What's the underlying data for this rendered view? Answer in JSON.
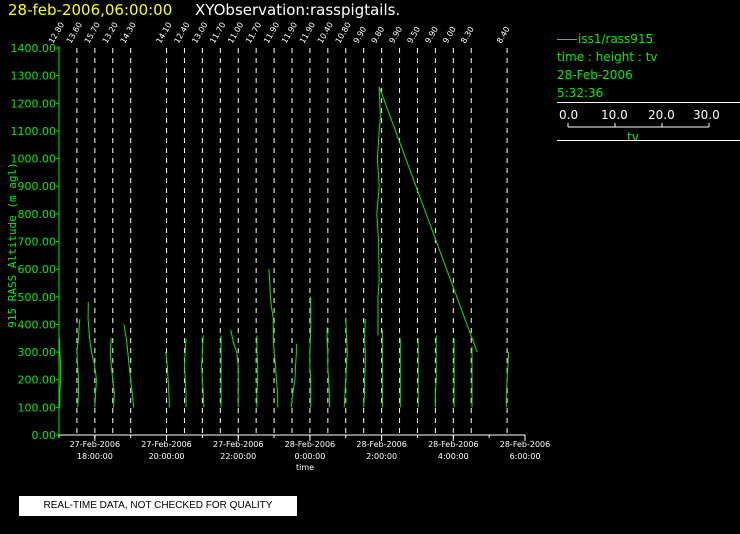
{
  "header": {
    "date_time": "28-feb-2006,06:00:00",
    "title": "XYObservation:rasspigtails."
  },
  "legend": {
    "series_label": "iss1/rass915",
    "description": "time : height : tv",
    "date": "28-Feb-2006",
    "time": "5:32:36",
    "scale_ticks": [
      "0.0",
      "10.0",
      "20.0",
      "30.0"
    ],
    "scale_label": "tv"
  },
  "notice": "REAL-TIME DATA, NOT CHECKED FOR QUALITY",
  "colors": {
    "background": "#000000",
    "data": "#00ee00",
    "title_date": "#ffff00",
    "text": "#ffffff"
  },
  "chart_data": {
    "type": "line",
    "xlabel": "time",
    "ylabel": "915 RASS Altitude (m agl)",
    "ylim": [
      0,
      1400
    ],
    "xlim": [
      "2006-02-27 17:00",
      "2006-02-28 06:00"
    ],
    "y_ticks": [
      "0.00",
      "100.00",
      "200.00",
      "300.00",
      "400.00",
      "500.00",
      "600.00",
      "700.00",
      "800.00",
      "900.00",
      "1000.00",
      "1100.00",
      "1200.00",
      "1300.00",
      "1400.00"
    ],
    "x_ticks": [
      {
        "date": "27-Feb-2006",
        "time": "18:00:00"
      },
      {
        "date": "27-Feb-2006",
        "time": "20:00:00"
      },
      {
        "date": "27-Feb-2006",
        "time": "22:00:00"
      },
      {
        "date": "28-Feb-2006",
        "time": "0:00:00"
      },
      {
        "date": "28-Feb-2006",
        "time": "2:00:00"
      },
      {
        "date": "28-Feb-2006",
        "time": "4:00:00"
      },
      {
        "date": "28-Feb-2006",
        "time": "6:00:00"
      }
    ],
    "surface_values": [
      "12.80",
      "13.60",
      "15.70",
      "13.20",
      "14.30",
      "14.10",
      "12.40",
      "13.00",
      "11.70",
      "11.00",
      "11.70",
      "11.90",
      "11.90",
      "11.90",
      "10.40",
      "10.80",
      "9.90",
      "9.80",
      "9.90",
      "9.50",
      "9.90",
      "9.00",
      "8.30",
      "8.40",
      "9.10"
    ],
    "profiles": [
      {
        "time": "2006-02-27 17:00",
        "points": [
          [
            0.3,
            100
          ],
          [
            0.3,
            150
          ],
          [
            0.6,
            200
          ],
          [
            0.6,
            250
          ],
          [
            0.3,
            300
          ],
          [
            0.2,
            350
          ]
        ]
      },
      {
        "time": "2006-02-27 17:30",
        "points": [
          [
            0.3,
            100
          ],
          [
            0.6,
            150
          ],
          [
            0.6,
            200
          ],
          [
            0.3,
            250
          ],
          [
            0.0,
            300
          ],
          [
            0.6,
            350
          ],
          [
            0.9,
            400
          ],
          [
            1.1,
            420
          ]
        ]
      },
      {
        "time": "2006-02-27 18:00",
        "points": [
          [
            0.0,
            100
          ],
          [
            0.3,
            150
          ],
          [
            0.6,
            200
          ],
          [
            0.0,
            250
          ],
          [
            -1.3,
            300
          ],
          [
            -2.0,
            350
          ],
          [
            -2.6,
            420
          ],
          [
            -2.5,
            480
          ]
        ]
      },
      {
        "time": "2006-02-27 18:30",
        "points": [
          [
            0.3,
            100
          ],
          [
            0.6,
            150
          ],
          [
            0.0,
            200
          ],
          [
            -0.6,
            250
          ],
          [
            -0.9,
            300
          ],
          [
            -0.6,
            350
          ]
        ]
      },
      {
        "time": "2006-02-27 19:00",
        "points": [
          [
            1.1,
            100
          ],
          [
            0.6,
            150
          ],
          [
            0.0,
            200
          ],
          [
            -0.6,
            250
          ],
          [
            -1.1,
            300
          ],
          [
            -1.7,
            350
          ],
          [
            -2.6,
            400
          ]
        ]
      },
      {
        "time": "2006-02-27 20:00",
        "points": [
          [
            1.1,
            100
          ],
          [
            0.9,
            150
          ],
          [
            0.6,
            200
          ],
          [
            0.3,
            250
          ],
          [
            -0.3,
            300
          ]
        ]
      },
      {
        "time": "2006-02-27 20:30",
        "points": [
          [
            0.6,
            100
          ],
          [
            0.6,
            150
          ],
          [
            0.3,
            200
          ],
          [
            0.0,
            250
          ],
          [
            0.3,
            300
          ],
          [
            0.6,
            350
          ]
        ]
      },
      {
        "time": "2006-02-27 21:00",
        "points": [
          [
            0.6,
            100
          ],
          [
            0.3,
            150
          ],
          [
            0.0,
            200
          ],
          [
            -0.3,
            250
          ],
          [
            0.0,
            300
          ],
          [
            0.3,
            360
          ]
        ]
      },
      {
        "time": "2006-02-27 21:30",
        "points": [
          [
            0.3,
            100
          ],
          [
            0.3,
            150
          ],
          [
            0.3,
            200
          ],
          [
            0.3,
            250
          ],
          [
            0.3,
            300
          ],
          [
            0.3,
            360
          ]
        ]
      },
      {
        "time": "2006-02-27 22:00",
        "points": [
          [
            0.0,
            100
          ],
          [
            0.0,
            150
          ],
          [
            0.0,
            200
          ],
          [
            0.0,
            250
          ],
          [
            -0.6,
            300
          ],
          [
            -1.7,
            330
          ],
          [
            -2.9,
            380
          ]
        ]
      },
      {
        "time": "2006-02-27 22:30",
        "points": [
          [
            0.3,
            100
          ],
          [
            0.3,
            150
          ],
          [
            0.6,
            200
          ],
          [
            0.6,
            260
          ],
          [
            0.3,
            300
          ],
          [
            0.3,
            360
          ]
        ]
      },
      {
        "time": "2006-02-27 23:00",
        "points": [
          [
            1.4,
            100
          ],
          [
            1.4,
            150
          ],
          [
            0.9,
            200
          ],
          [
            0.6,
            250
          ],
          [
            0.0,
            300
          ],
          [
            -0.3,
            350
          ],
          [
            -0.3,
            420
          ],
          [
            -1.1,
            470
          ],
          [
            -1.4,
            500
          ],
          [
            -1.7,
            560
          ],
          [
            -2.0,
            600
          ]
        ]
      },
      {
        "time": "2006-02-27 23:30",
        "points": [
          [
            -0.3,
            100
          ],
          [
            0.3,
            150
          ],
          [
            1.1,
            200
          ],
          [
            1.4,
            250
          ],
          [
            1.7,
            300
          ],
          [
            1.7,
            330
          ]
        ]
      },
      {
        "time": "2006-02-28 00:00",
        "points": [
          [
            0.3,
            100
          ],
          [
            0.3,
            150
          ],
          [
            0.3,
            200
          ],
          [
            0.0,
            250
          ],
          [
            0.0,
            300
          ],
          [
            0.3,
            380
          ],
          [
            0.3,
            460
          ],
          [
            0.3,
            500
          ]
        ]
      },
      {
        "time": "2006-02-28 00:30",
        "points": [
          [
            0.6,
            100
          ],
          [
            0.6,
            150
          ],
          [
            0.3,
            200
          ],
          [
            0.0,
            250
          ],
          [
            0.0,
            300
          ],
          [
            -0.3,
            350
          ],
          [
            -0.3,
            390
          ]
        ]
      },
      {
        "time": "2006-02-28 01:00",
        "points": [
          [
            -0.6,
            100
          ],
          [
            -0.3,
            150
          ],
          [
            0.0,
            200
          ],
          [
            0.3,
            250
          ],
          [
            0.6,
            300
          ],
          [
            0.3,
            360
          ],
          [
            0.0,
            420
          ]
        ]
      },
      {
        "time": "2006-02-28 01:30",
        "points": [
          [
            0.0,
            100
          ],
          [
            0.3,
            150
          ],
          [
            0.3,
            200
          ],
          [
            0.6,
            250
          ],
          [
            0.6,
            300
          ],
          [
            0.3,
            350
          ],
          [
            0.6,
            420
          ]
        ]
      },
      {
        "time": "2006-02-28 02:00",
        "points": [
          [
            0.3,
            100
          ],
          [
            0.3,
            150
          ],
          [
            0.3,
            200
          ],
          [
            0.3,
            250
          ],
          [
            0.3,
            300
          ],
          [
            0.3,
            360
          ],
          [
            0.3,
            380
          ]
        ]
      },
      {
        "time": "2006-02-28 02:30",
        "points": [
          [
            0.3,
            100
          ],
          [
            0.3,
            150
          ],
          [
            0.3,
            200
          ],
          [
            0.3,
            250
          ],
          [
            0.3,
            300
          ],
          [
            0.3,
            350
          ]
        ]
      },
      {
        "time": "2006-02-28 03:00",
        "points": [
          [
            0.3,
            100
          ],
          [
            0.3,
            150
          ],
          [
            0.3,
            200
          ],
          [
            0.3,
            250
          ],
          [
            0.3,
            300
          ],
          [
            0.3,
            350
          ]
        ]
      },
      {
        "time": "2006-02-28 03:30",
        "points": [
          [
            0.0,
            100
          ],
          [
            0.0,
            150
          ],
          [
            0.3,
            200
          ],
          [
            0.3,
            250
          ],
          [
            0.3,
            300
          ],
          [
            0.3,
            360
          ]
        ]
      },
      {
        "time": "2006-02-28 04:00",
        "points": [
          [
            0.3,
            100
          ],
          [
            0.3,
            150
          ],
          [
            0.3,
            200
          ],
          [
            0.3,
            250
          ],
          [
            0.3,
            300
          ],
          [
            0.3,
            350
          ]
        ]
      },
      {
        "time": "2006-02-28 04:30",
        "points": [
          [
            0.3,
            100
          ],
          [
            0.3,
            150
          ],
          [
            0.3,
            200
          ],
          [
            0.3,
            250
          ],
          [
            0.3,
            300
          ],
          [
            0.3,
            320
          ]
        ]
      },
      {
        "time": "2006-02-28 05:30",
        "points": [
          [
            -0.3,
            100
          ],
          [
            -0.3,
            150
          ],
          [
            0.0,
            200
          ],
          [
            0.3,
            250
          ],
          [
            0.6,
            300
          ]
        ]
      }
    ],
    "spike": [
      {
        "time": "2006-02-28 01:54",
        "y": 360
      },
      {
        "time": "2006-02-28 01:54",
        "y": 500
      },
      {
        "time": "2006-02-28 01:56",
        "y": 560
      },
      {
        "time": "2006-02-28 01:55",
        "y": 700
      },
      {
        "time": "2006-02-28 01:52",
        "y": 800
      },
      {
        "time": "2006-02-28 01:56",
        "y": 900
      },
      {
        "time": "2006-02-28 01:53",
        "y": 1000
      },
      {
        "time": "2006-02-28 01:56",
        "y": 1100
      },
      {
        "time": "2006-02-28 01:58",
        "y": 1150
      },
      {
        "time": "2006-02-28 01:56",
        "y": 1260
      },
      {
        "time": "2006-02-28 04:40",
        "y": 300
      }
    ]
  }
}
